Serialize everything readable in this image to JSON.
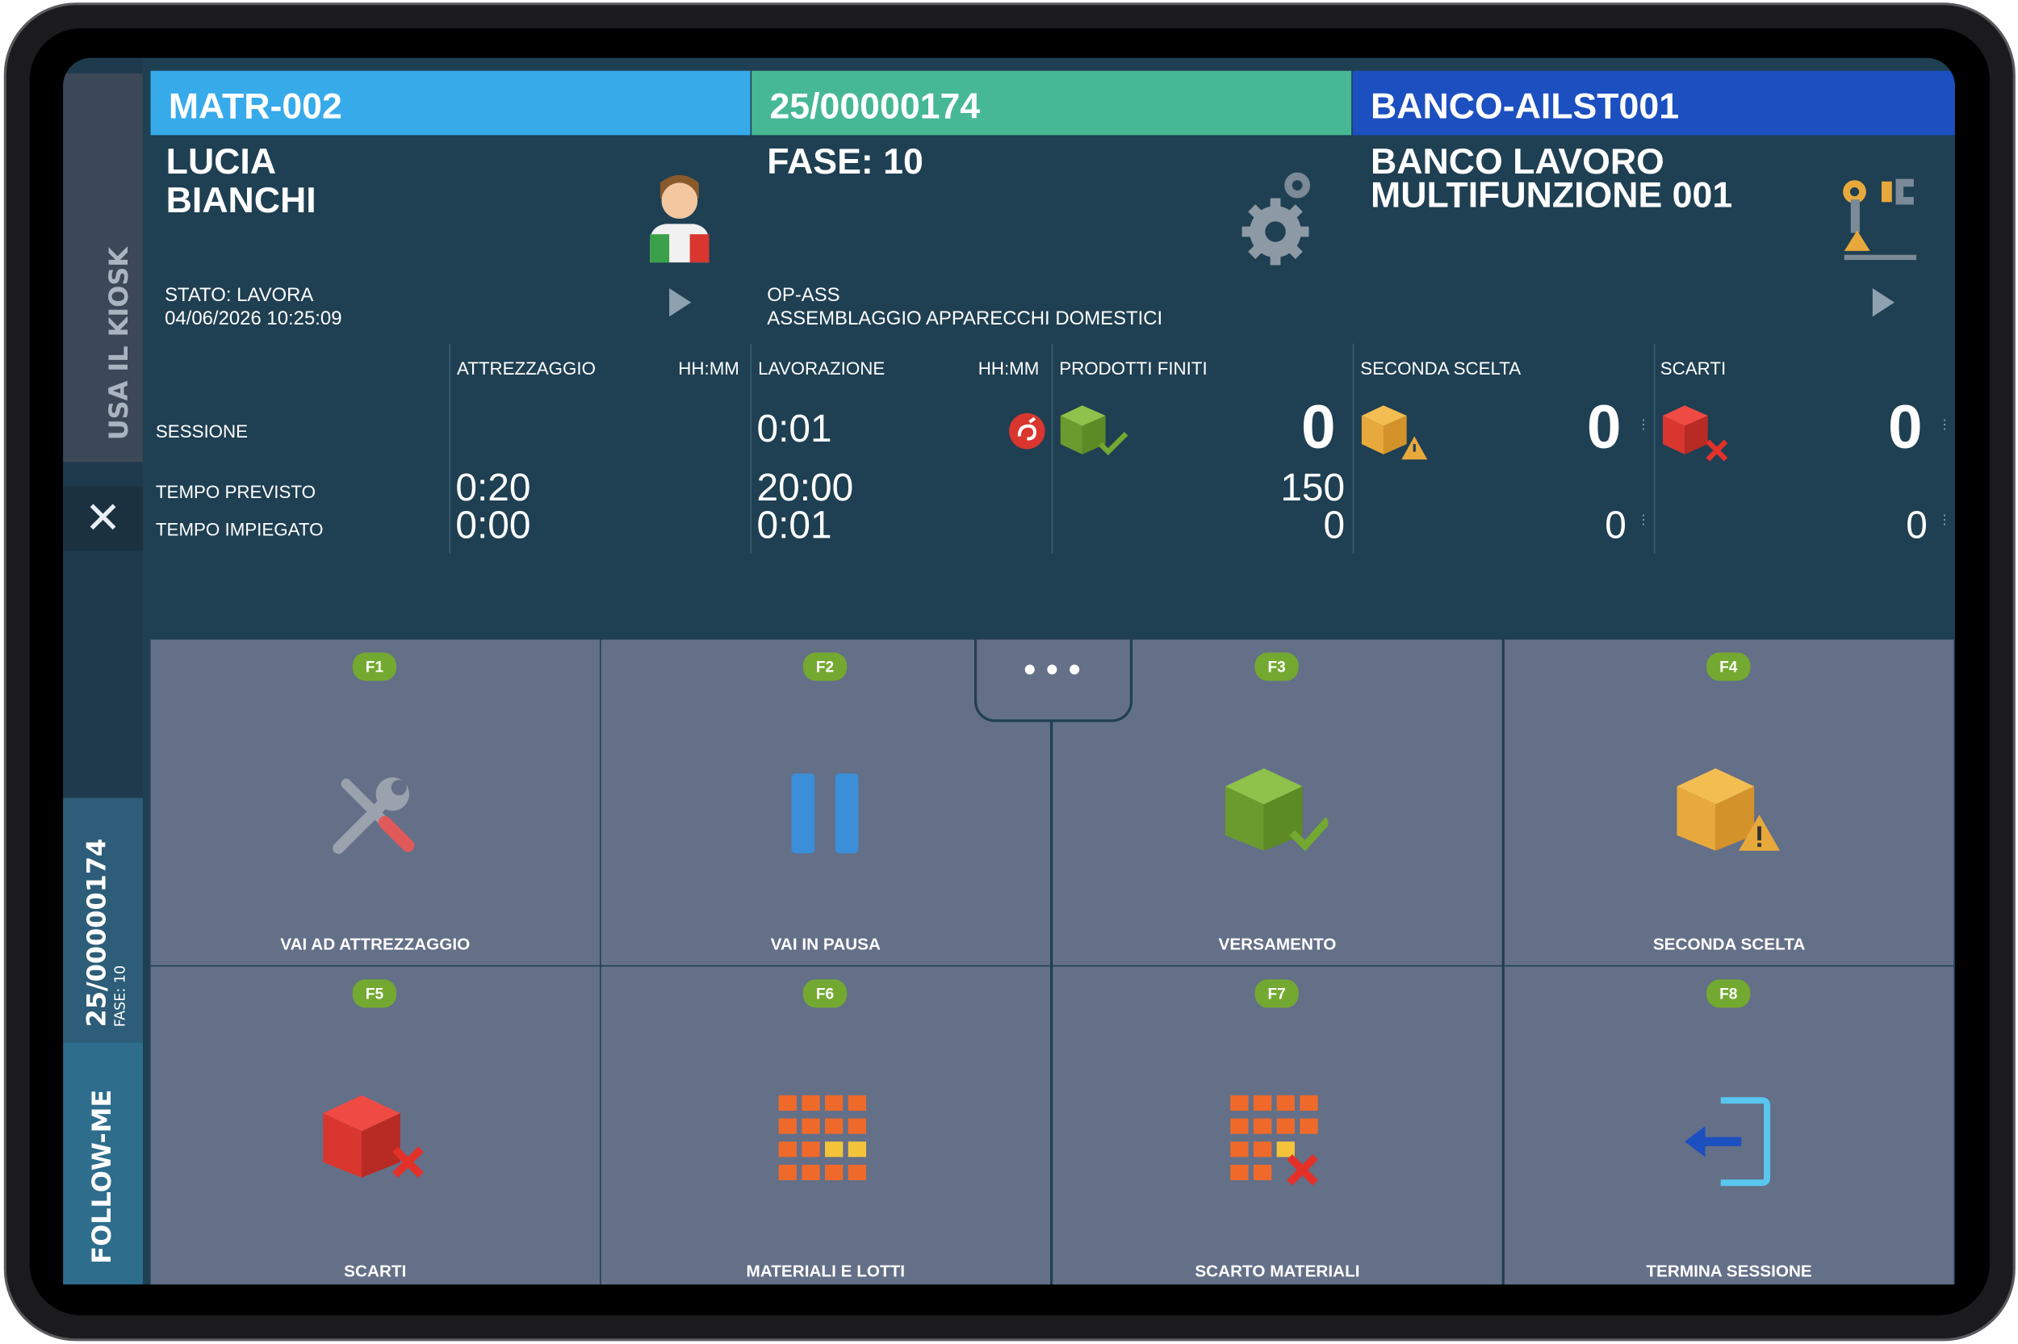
{
  "sidebar": {
    "kiosk_label": "USA IL KIOSK",
    "order_number": "25/00000174",
    "order_phase": "FASE: 10",
    "follow_label": "FOLLOW-ME"
  },
  "operator": {
    "code": "MATR-002",
    "first_name": "LUCIA",
    "last_name": "BIANCHI",
    "status": "STATO: LAVORA",
    "datetime": "04/06/2026 10:25:09",
    "code_color": "#37aaea"
  },
  "order": {
    "code": "25/00000174",
    "phase": "FASE: 10",
    "op_code": "OP-ASS",
    "op_desc": "ASSEMBLAGGIO APPARECCHI DOMESTICI",
    "code_color": "#47b894"
  },
  "workstation": {
    "code": "BANCO-AILST001",
    "line1": "BANCO LAVORO",
    "line2": "MULTIFUNZIONE 001",
    "code_color": "#1c4fc0"
  },
  "stats": {
    "row_session": "SESSIONE",
    "row_planned": "TEMPO PREVISTO",
    "row_spent": "TEMPO IMPIEGATO",
    "setup": {
      "title": "ATTREZZAGGIO",
      "unit": "HH:MM",
      "planned": "0:20",
      "spent": "0:00"
    },
    "work": {
      "title": "LAVORAZIONE",
      "unit": "HH:MM",
      "session": "0:01",
      "planned": "20:00",
      "spent": "0:01"
    },
    "finished": {
      "title": "PRODOTTI FINITI",
      "session": "0",
      "planned": "150",
      "spent": "0"
    },
    "second": {
      "title": "SECONDA SCELTA",
      "session": "0",
      "spent": "0"
    },
    "scrap": {
      "title": "SCARTI",
      "session": "0",
      "spent": "0"
    }
  },
  "more_label": "•••",
  "actions": [
    {
      "key": "F1",
      "label": "VAI AD ATTREZZAGGIO",
      "icon": "tools-icon"
    },
    {
      "key": "F2",
      "label": "VAI IN PAUSA",
      "icon": "pause-icon"
    },
    {
      "key": "F3",
      "label": "VERSAMENTO",
      "icon": "box-check-icon"
    },
    {
      "key": "F4",
      "label": "SECONDA SCELTA",
      "icon": "box-warning-icon"
    },
    {
      "key": "F5",
      "label": "SCARTI",
      "icon": "box-cross-icon"
    },
    {
      "key": "F6",
      "label": "MATERIALI E LOTTI",
      "icon": "materials-grid-icon"
    },
    {
      "key": "F7",
      "label": "SCARTO MATERIALI",
      "icon": "materials-scrap-icon"
    },
    {
      "key": "F8",
      "label": "TERMINA SESSIONE",
      "icon": "exit-icon"
    }
  ]
}
